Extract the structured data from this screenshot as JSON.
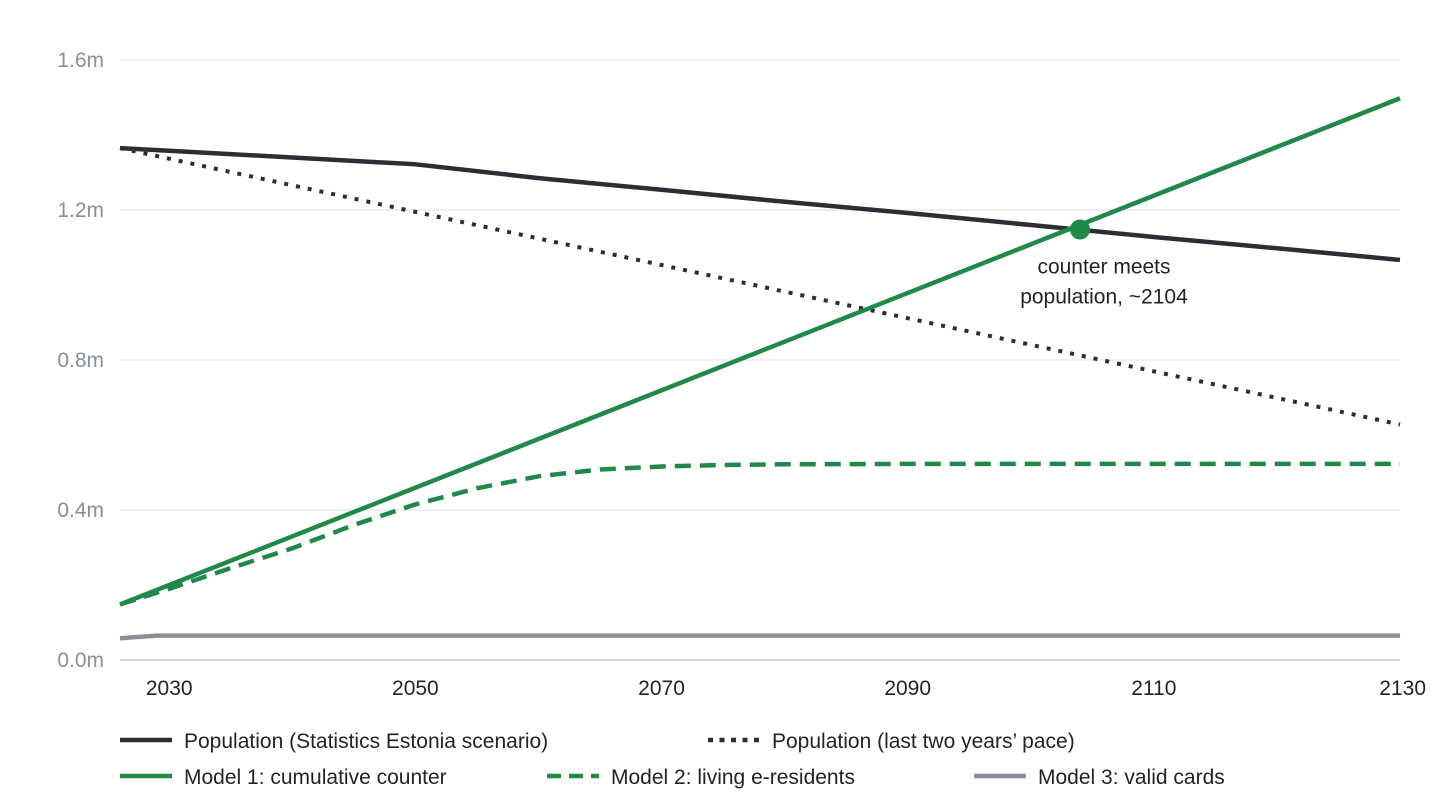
{
  "chart_data": {
    "type": "line",
    "title": "",
    "xlabel": "",
    "ylabel": "",
    "xlim": [
      2026,
      2130
    ],
    "ylim": [
      0,
      1.6
    ],
    "grid": true,
    "legend_placement": "bottom",
    "x_ticks": [
      {
        "value": 2030,
        "label": "2030"
      },
      {
        "value": 2050,
        "label": "2050"
      },
      {
        "value": 2070,
        "label": "2070"
      },
      {
        "value": 2090,
        "label": "2090"
      },
      {
        "value": 2110,
        "label": "2110"
      },
      {
        "value": 2130,
        "label": "2130"
      }
    ],
    "y_ticks": [
      {
        "value": 0.0,
        "label": "0.0m"
      },
      {
        "value": 0.4,
        "label": "0.4m"
      },
      {
        "value": 0.8,
        "label": "0.8m"
      },
      {
        "value": 1.2,
        "label": "1.2m"
      },
      {
        "value": 1.6,
        "label": "1.6m"
      }
    ],
    "series": [
      {
        "name": "Population (Statistics Estonia scenario)",
        "color": "#2b2e33",
        "style": "solid",
        "points": [
          [
            2026,
            1.365
          ],
          [
            2030,
            1.358
          ],
          [
            2040,
            1.34
          ],
          [
            2050,
            1.322
          ],
          [
            2060,
            1.285
          ],
          [
            2070,
            1.254
          ],
          [
            2080,
            1.222
          ],
          [
            2090,
            1.192
          ],
          [
            2100,
            1.16
          ],
          [
            2110,
            1.128
          ],
          [
            2120,
            1.098
          ],
          [
            2130,
            1.067
          ]
        ]
      },
      {
        "name": "Population (last two years’ pace)",
        "color": "#2b2e33",
        "style": "dotted",
        "points": [
          [
            2026,
            1.365
          ],
          [
            2130,
            0.628
          ]
        ]
      },
      {
        "name": "Model 1: cumulative counter",
        "color": "#20894a",
        "style": "solid",
        "points": [
          [
            2026,
            0.148
          ],
          [
            2130,
            1.498
          ]
        ]
      },
      {
        "name": "Model 2: living e-residents",
        "color": "#20894a",
        "style": "dashed",
        "points": [
          [
            2026,
            0.148
          ],
          [
            2030,
            0.19
          ],
          [
            2035,
            0.245
          ],
          [
            2040,
            0.298
          ],
          [
            2045,
            0.36
          ],
          [
            2050,
            0.415
          ],
          [
            2055,
            0.458
          ],
          [
            2060,
            0.49
          ],
          [
            2065,
            0.508
          ],
          [
            2070,
            0.516
          ],
          [
            2075,
            0.52
          ],
          [
            2080,
            0.522
          ],
          [
            2090,
            0.523
          ],
          [
            2100,
            0.523
          ],
          [
            2110,
            0.523
          ],
          [
            2120,
            0.523
          ],
          [
            2130,
            0.523
          ]
        ]
      },
      {
        "name": "Model 3: valid cards",
        "color": "#8c9096",
        "style": "solid",
        "points": [
          [
            2026,
            0.058
          ],
          [
            2029,
            0.065
          ],
          [
            2040,
            0.065
          ],
          [
            2060,
            0.065
          ],
          [
            2080,
            0.065
          ],
          [
            2100,
            0.065
          ],
          [
            2130,
            0.065
          ]
        ]
      }
    ],
    "annotations": [
      {
        "x": 2104,
        "y": 1.148,
        "color": "#20894a",
        "text_lines": [
          "counter meets",
          "population, ~2104"
        ]
      }
    ]
  }
}
